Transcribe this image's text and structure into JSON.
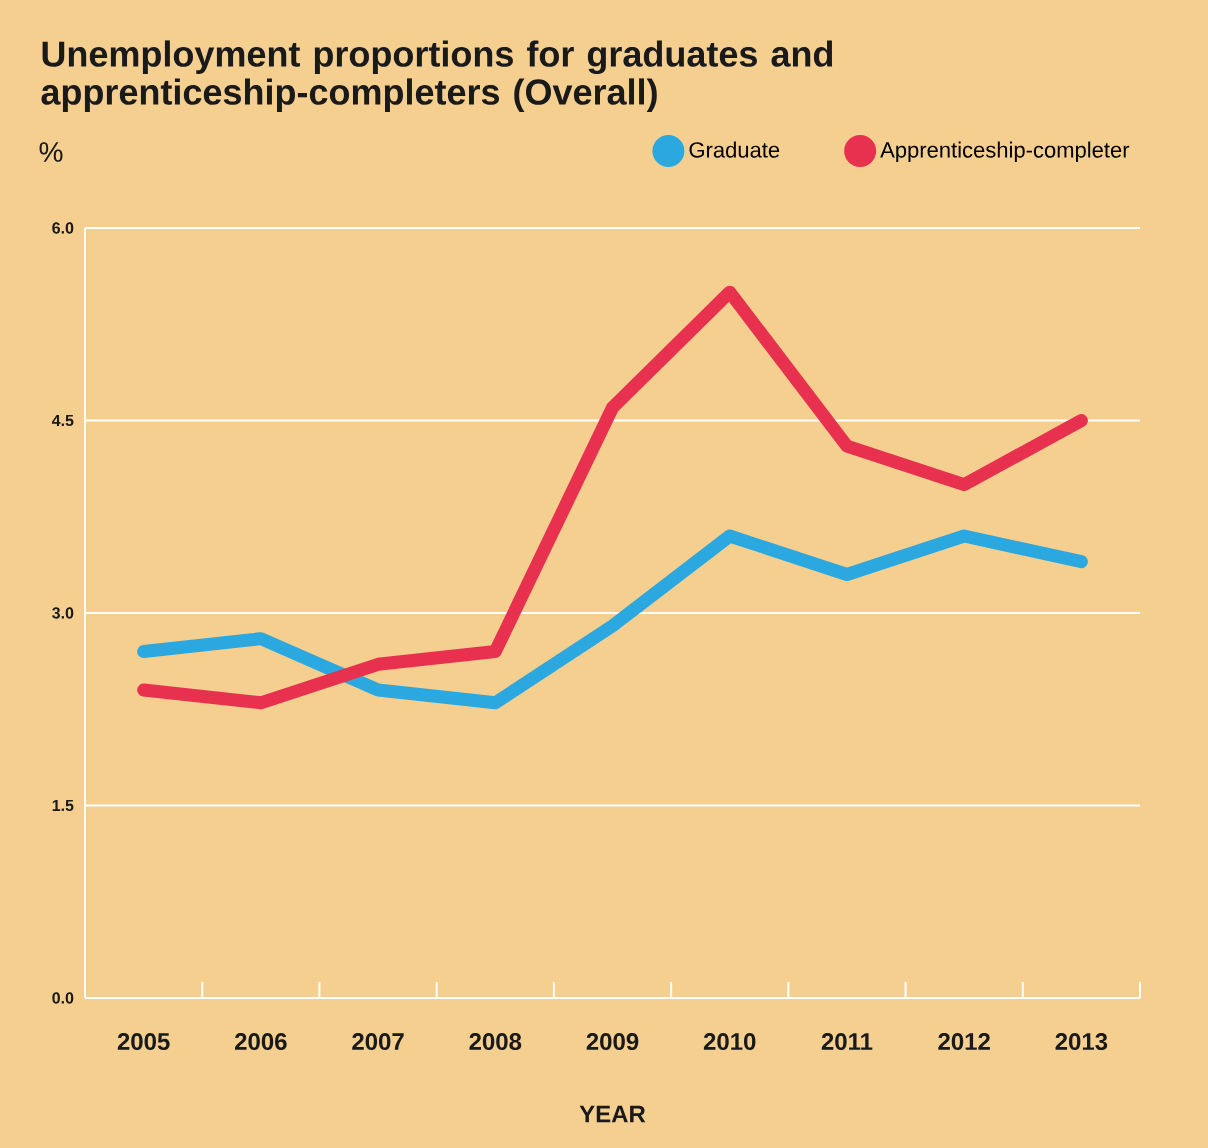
{
  "chart_data": {
    "type": "line",
    "title": "Unemployment proportions for graduates and apprenticeship-completers (Overall)",
    "xlabel": "YEAR",
    "ylabel": "%",
    "categories": [
      "2005",
      "2006",
      "2007",
      "2008",
      "2009",
      "2010",
      "2011",
      "2012",
      "2013"
    ],
    "series": [
      {
        "name": "Graduate",
        "color": "#2ba8e0",
        "values": [
          2.7,
          2.8,
          2.4,
          2.3,
          2.9,
          3.6,
          3.3,
          3.6,
          3.4
        ]
      },
      {
        "name": "Apprenticeship-completer",
        "color": "#e8304f",
        "values": [
          2.4,
          2.3,
          2.6,
          2.7,
          4.6,
          5.5,
          4.3,
          4.0,
          4.5
        ]
      }
    ],
    "ylim": [
      0,
      6
    ],
    "yticks": [
      {
        "value": 0,
        "label": "0.0"
      },
      {
        "value": 1.5,
        "label": "1.5"
      },
      {
        "value": 3,
        "label": "3.0"
      },
      {
        "value": 4.5,
        "label": "4.5"
      },
      {
        "value": 6,
        "label": "6.0"
      }
    ],
    "grid": "y",
    "legend": "top right",
    "marker": "none",
    "line_style": "solid"
  }
}
